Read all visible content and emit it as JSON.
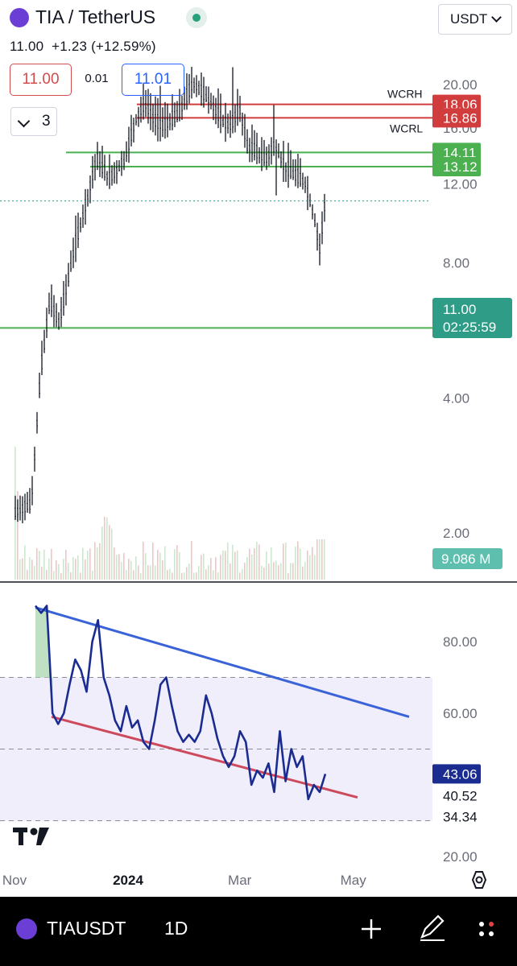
{
  "header": {
    "symbol_title": "TIA / TetherUS",
    "price_change": "11.00  +1.23 (+12.59%)",
    "sell_price": "11.00",
    "spread": "0.01",
    "buy_price": "11.01",
    "indicator_count": "3",
    "currency_select": "USDT"
  },
  "colors": {
    "up_green": "#4caf50",
    "resistance_red": "#d13c3c",
    "last_price_teal": "#2f9c88",
    "rsi_line": "#1a2c8f",
    "rsi_upper_trend": "#3b63d8",
    "rsi_lower_trend": "#cc4a5c",
    "rsi_band": "#f1eefc"
  },
  "chart_data": [
    {
      "type": "candlestick",
      "scale": "log",
      "y_axis_ticks": [
        "2.00",
        "4.00",
        "8.00",
        "12.00",
        "16.00",
        "20.00"
      ],
      "ylim": [
        1.5,
        22
      ],
      "x_axis_ticks": [
        "Nov",
        "2024",
        "Mar",
        "May"
      ],
      "ohlc_summary": {
        "start_price": 2.2,
        "all_time_high": 20.9,
        "ath_period": "early Feb 2024",
        "recent_low": 7.4,
        "last": 11.0
      },
      "path_points": [
        {
          "date": "2023-11-01",
          "price": 2.2
        },
        {
          "date": "2023-11-10",
          "price": 2.3
        },
        {
          "date": "2023-11-15",
          "price": 4.5
        },
        {
          "date": "2023-11-20",
          "price": 6.5
        },
        {
          "date": "2023-11-25",
          "price": 5.8
        },
        {
          "date": "2023-12-03",
          "price": 8.5
        },
        {
          "date": "2023-12-10",
          "price": 11.0
        },
        {
          "date": "2023-12-15",
          "price": 13.5
        },
        {
          "date": "2023-12-22",
          "price": 12.2
        },
        {
          "date": "2023-12-30",
          "price": 13.4
        },
        {
          "date": "2024-01-05",
          "price": 16.5
        },
        {
          "date": "2024-01-10",
          "price": 18.0
        },
        {
          "date": "2024-01-15",
          "price": 16.5
        },
        {
          "date": "2024-01-20",
          "price": 16.0
        },
        {
          "date": "2024-01-28",
          "price": 17.0
        },
        {
          "date": "2024-02-05",
          "price": 20.0
        },
        {
          "date": "2024-02-10",
          "price": 19.0
        },
        {
          "date": "2024-02-15",
          "price": 18.0
        },
        {
          "date": "2024-02-20",
          "price": 16.5
        },
        {
          "date": "2024-02-25",
          "price": 16.0
        },
        {
          "date": "2024-03-01",
          "price": 17.5
        },
        {
          "date": "2024-03-05",
          "price": 14.5
        },
        {
          "date": "2024-03-10",
          "price": 14.0
        },
        {
          "date": "2024-03-15",
          "price": 13.5
        },
        {
          "date": "2024-03-20",
          "price": 14.5
        },
        {
          "date": "2024-03-25",
          "price": 13.0
        },
        {
          "date": "2024-03-30",
          "price": 12.5
        },
        {
          "date": "2024-04-05",
          "price": 12.0
        },
        {
          "date": "2024-04-10",
          "price": 10.0
        },
        {
          "date": "2024-04-13",
          "price": 8.5
        },
        {
          "date": "2024-04-16",
          "price": 11.0
        }
      ],
      "horizontal_levels": [
        {
          "price": 18.06,
          "label": "18.06",
          "name": "WCRH",
          "color": "#d13c3c"
        },
        {
          "price": 16.86,
          "label": "16.86",
          "name": "WCRL",
          "color": "#d13c3c"
        },
        {
          "price": 14.11,
          "label": "14.11",
          "color": "#4caf50"
        },
        {
          "price": 13.12,
          "label": "13.12",
          "color": "#4caf50"
        },
        {
          "price": 5.73,
          "label": "5.73",
          "color": "#4caf50"
        }
      ],
      "last_price": {
        "value": "11.00",
        "countdown": "02:25:59"
      },
      "volume_label": "9.086 M"
    },
    {
      "type": "line",
      "indicator": "RSI",
      "y_axis_ticks": [
        "20.00",
        "60.00",
        "80.00"
      ],
      "ylim": [
        15,
        95
      ],
      "band": [
        30,
        70
      ],
      "series": [
        {
          "values": [
            90,
            88,
            90,
            60,
            57,
            60,
            68,
            75,
            72,
            66,
            80,
            86,
            70,
            65,
            58,
            55,
            62,
            56,
            58,
            52,
            50,
            58,
            68,
            70,
            62,
            55,
            52,
            54,
            52,
            55,
            65,
            60,
            53,
            48,
            45,
            48,
            55,
            52,
            40,
            44,
            42,
            46,
            38,
            55,
            41,
            50,
            45,
            48,
            36,
            40,
            38,
            43.06
          ]
        }
      ],
      "value_labels": {
        "current": "43.06",
        "level_a": "40.52",
        "level_b": "34.34"
      }
    }
  ]
}
